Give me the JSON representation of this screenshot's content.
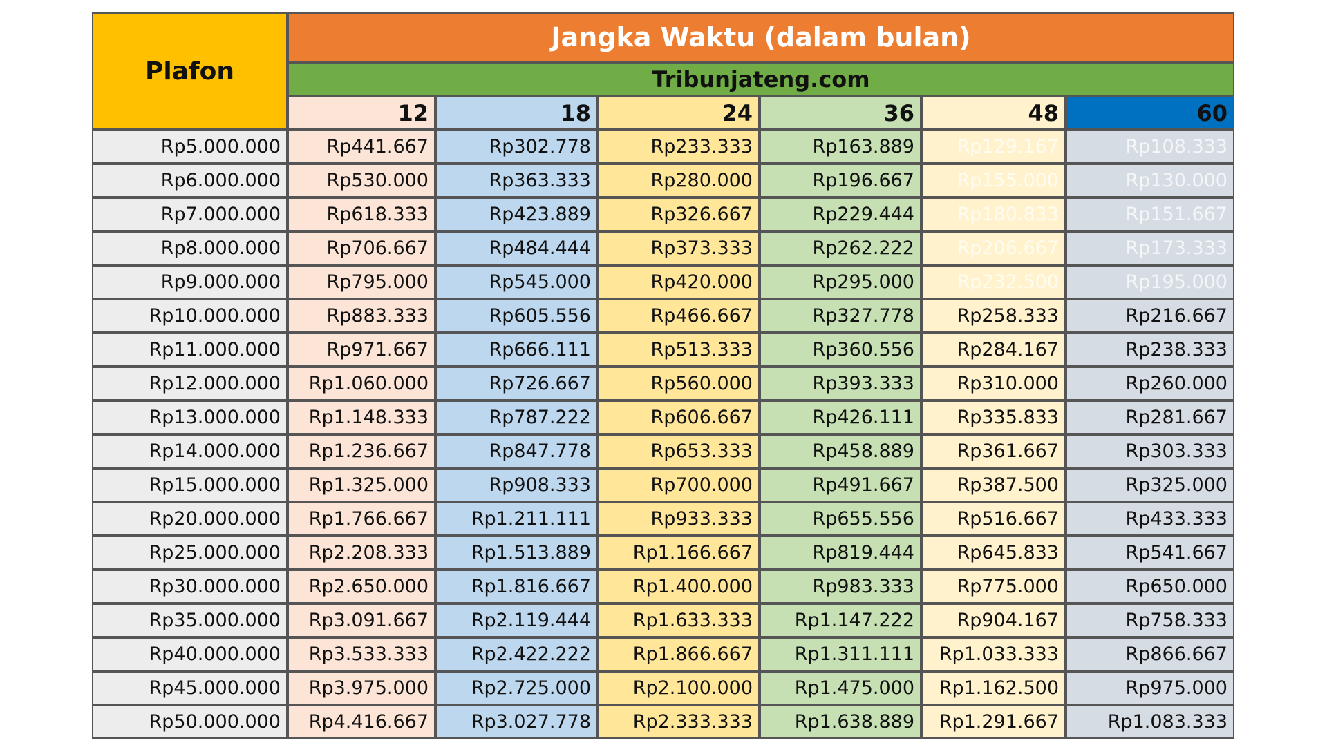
{
  "header": {
    "plafon": "Plafon",
    "title": "Jangka Waktu (dalam bulan)",
    "source": "Tribunjateng.com",
    "terms": [
      "12",
      "18",
      "24",
      "36",
      "48",
      "60"
    ]
  },
  "table": {
    "rows": [
      [
        "Rp5.000.000",
        "Rp441.667",
        "Rp302.778",
        "Rp233.333",
        "Rp163.889",
        "Rp129.167",
        "Rp108.333"
      ],
      [
        "Rp6.000.000",
        "Rp530.000",
        "Rp363.333",
        "Rp280.000",
        "Rp196.667",
        "Rp155.000",
        "Rp130.000"
      ],
      [
        "Rp7.000.000",
        "Rp618.333",
        "Rp423.889",
        "Rp326.667",
        "Rp229.444",
        "Rp180.833",
        "Rp151.667"
      ],
      [
        "Rp8.000.000",
        "Rp706.667",
        "Rp484.444",
        "Rp373.333",
        "Rp262.222",
        "Rp206.667",
        "Rp173.333"
      ],
      [
        "Rp9.000.000",
        "Rp795.000",
        "Rp545.000",
        "Rp420.000",
        "Rp295.000",
        "Rp232.500",
        "Rp195.000"
      ],
      [
        "Rp10.000.000",
        "Rp883.333",
        "Rp605.556",
        "Rp466.667",
        "Rp327.778",
        "Rp258.333",
        "Rp216.667"
      ],
      [
        "Rp11.000.000",
        "Rp971.667",
        "Rp666.111",
        "Rp513.333",
        "Rp360.556",
        "Rp284.167",
        "Rp238.333"
      ],
      [
        "Rp12.000.000",
        "Rp1.060.000",
        "Rp726.667",
        "Rp560.000",
        "Rp393.333",
        "Rp310.000",
        "Rp260.000"
      ],
      [
        "Rp13.000.000",
        "Rp1.148.333",
        "Rp787.222",
        "Rp606.667",
        "Rp426.111",
        "Rp335.833",
        "Rp281.667"
      ],
      [
        "Rp14.000.000",
        "Rp1.236.667",
        "Rp847.778",
        "Rp653.333",
        "Rp458.889",
        "Rp361.667",
        "Rp303.333"
      ],
      [
        "Rp15.000.000",
        "Rp1.325.000",
        "Rp908.333",
        "Rp700.000",
        "Rp491.667",
        "Rp387.500",
        "Rp325.000"
      ],
      [
        "Rp20.000.000",
        "Rp1.766.667",
        "Rp1.211.111",
        "Rp933.333",
        "Rp655.556",
        "Rp516.667",
        "Rp433.333"
      ],
      [
        "Rp25.000.000",
        "Rp2.208.333",
        "Rp1.513.889",
        "Rp1.166.667",
        "Rp819.444",
        "Rp645.833",
        "Rp541.667"
      ],
      [
        "Rp30.000.000",
        "Rp2.650.000",
        "Rp1.816.667",
        "Rp1.400.000",
        "Rp983.333",
        "Rp775.000",
        "Rp650.000"
      ],
      [
        "Rp35.000.000",
        "Rp3.091.667",
        "Rp2.119.444",
        "Rp1.633.333",
        "Rp1.147.222",
        "Rp904.167",
        "Rp758.333"
      ],
      [
        "Rp40.000.000",
        "Rp3.533.333",
        "Rp2.422.222",
        "Rp1.866.667",
        "Rp1.311.111",
        "Rp1.033.333",
        "Rp866.667"
      ],
      [
        "Rp45.000.000",
        "Rp3.975.000",
        "Rp2.725.000",
        "Rp2.100.000",
        "Rp1.475.000",
        "Rp1.162.500",
        "Rp975.000"
      ],
      [
        "Rp50.000.000",
        "Rp4.416.667",
        "Rp3.027.778",
        "Rp2.333.333",
        "Rp1.638.889",
        "Rp1.291.667",
        "Rp1.083.333"
      ]
    ]
  }
}
